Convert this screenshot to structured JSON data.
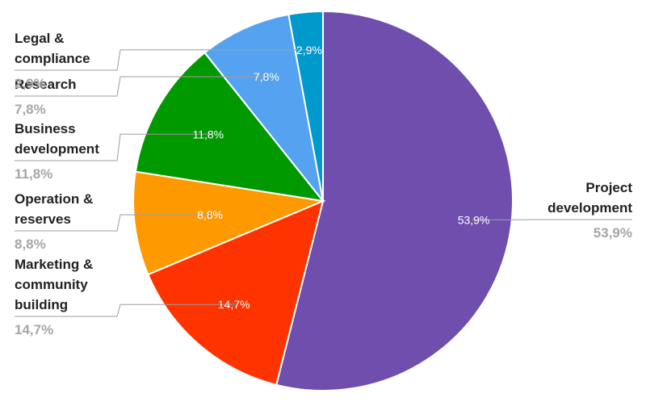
{
  "chart_data": {
    "type": "pie",
    "title": "",
    "slices": [
      {
        "label_lines": [
          "Project",
          "development"
        ],
        "value": 53.9,
        "value_label": "53,9%",
        "color": "#6f4ead"
      },
      {
        "label_lines": [
          "Marketing &",
          "community",
          "building"
        ],
        "value": 14.7,
        "value_label": "14,7%",
        "color": "#ff3300"
      },
      {
        "label_lines": [
          "Operation &",
          "reserves"
        ],
        "value": 8.8,
        "value_label": "8,8%",
        "color": "#ff9900"
      },
      {
        "label_lines": [
          "Business",
          "development"
        ],
        "value": 11.8,
        "value_label": "11,8%",
        "color": "#009900"
      },
      {
        "label_lines": [
          "Research"
        ],
        "value": 7.8,
        "value_label": "7,8%",
        "color": "#55a3f0"
      },
      {
        "label_lines": [
          "Legal &",
          "compliance"
        ],
        "value": 2.9,
        "value_label": "2,9%",
        "color": "#0099cc"
      }
    ],
    "start_angle_deg": 0,
    "direction": "clockwise",
    "legend": "none"
  }
}
